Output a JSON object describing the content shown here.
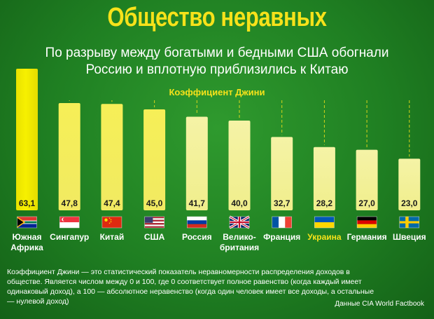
{
  "header": {
    "title": "Общество неравных",
    "subtitle_line1": "По разрыву между богатыми и бедными США обогнали",
    "subtitle_line2": "Россию и вплотную приблизились к Китаю"
  },
  "chart_data": {
    "type": "bar",
    "title": "Коэффициент Джини",
    "categories": [
      "Южная Африка",
      "Сингапур",
      "Китай",
      "США",
      "Россия",
      "Велико-британия",
      "Франция",
      "Украина",
      "Германия",
      "Швеция"
    ],
    "category_lines": [
      [
        "Южная",
        "Африка"
      ],
      [
        "Сингапур"
      ],
      [
        "Китай"
      ],
      [
        "США"
      ],
      [
        "Россия"
      ],
      [
        "Велико-",
        "британия"
      ],
      [
        "Франция"
      ],
      [
        "Украина"
      ],
      [
        "Германия"
      ],
      [
        "Швеция"
      ]
    ],
    "values": [
      63.1,
      47.8,
      47.4,
      45.0,
      41.7,
      40.0,
      32.7,
      28.2,
      27.0,
      23.0
    ],
    "value_labels": [
      "63,1",
      "47,8",
      "47,4",
      "45,0",
      "41,7",
      "40,0",
      "32,7",
      "28,2",
      "27,0",
      "23,0"
    ],
    "flags": [
      "south-africa",
      "singapore",
      "china",
      "usa",
      "russia",
      "uk",
      "france",
      "ukraine",
      "germany",
      "sweden"
    ],
    "highlight": "Украина",
    "ylim": [
      0,
      63.1
    ],
    "colors": {
      "bar_bright": "#f7f000",
      "bar_pale": "#f5f3a6",
      "highlight_label": "#f6e21a",
      "label": "#ffffff"
    }
  },
  "footnote": "Коэффициент Джини — это статистический показатель неравномерности распределения доходов в обществе. Является числом между 0 и 100, где 0 соответствует полное равенство (когда каждый имеет одинаковый доход), а 100 — абсолютное неравенство (когда один человек имеет все доходы, а остальные — нулевой доход)",
  "source": "Данные CIA World Factbook"
}
